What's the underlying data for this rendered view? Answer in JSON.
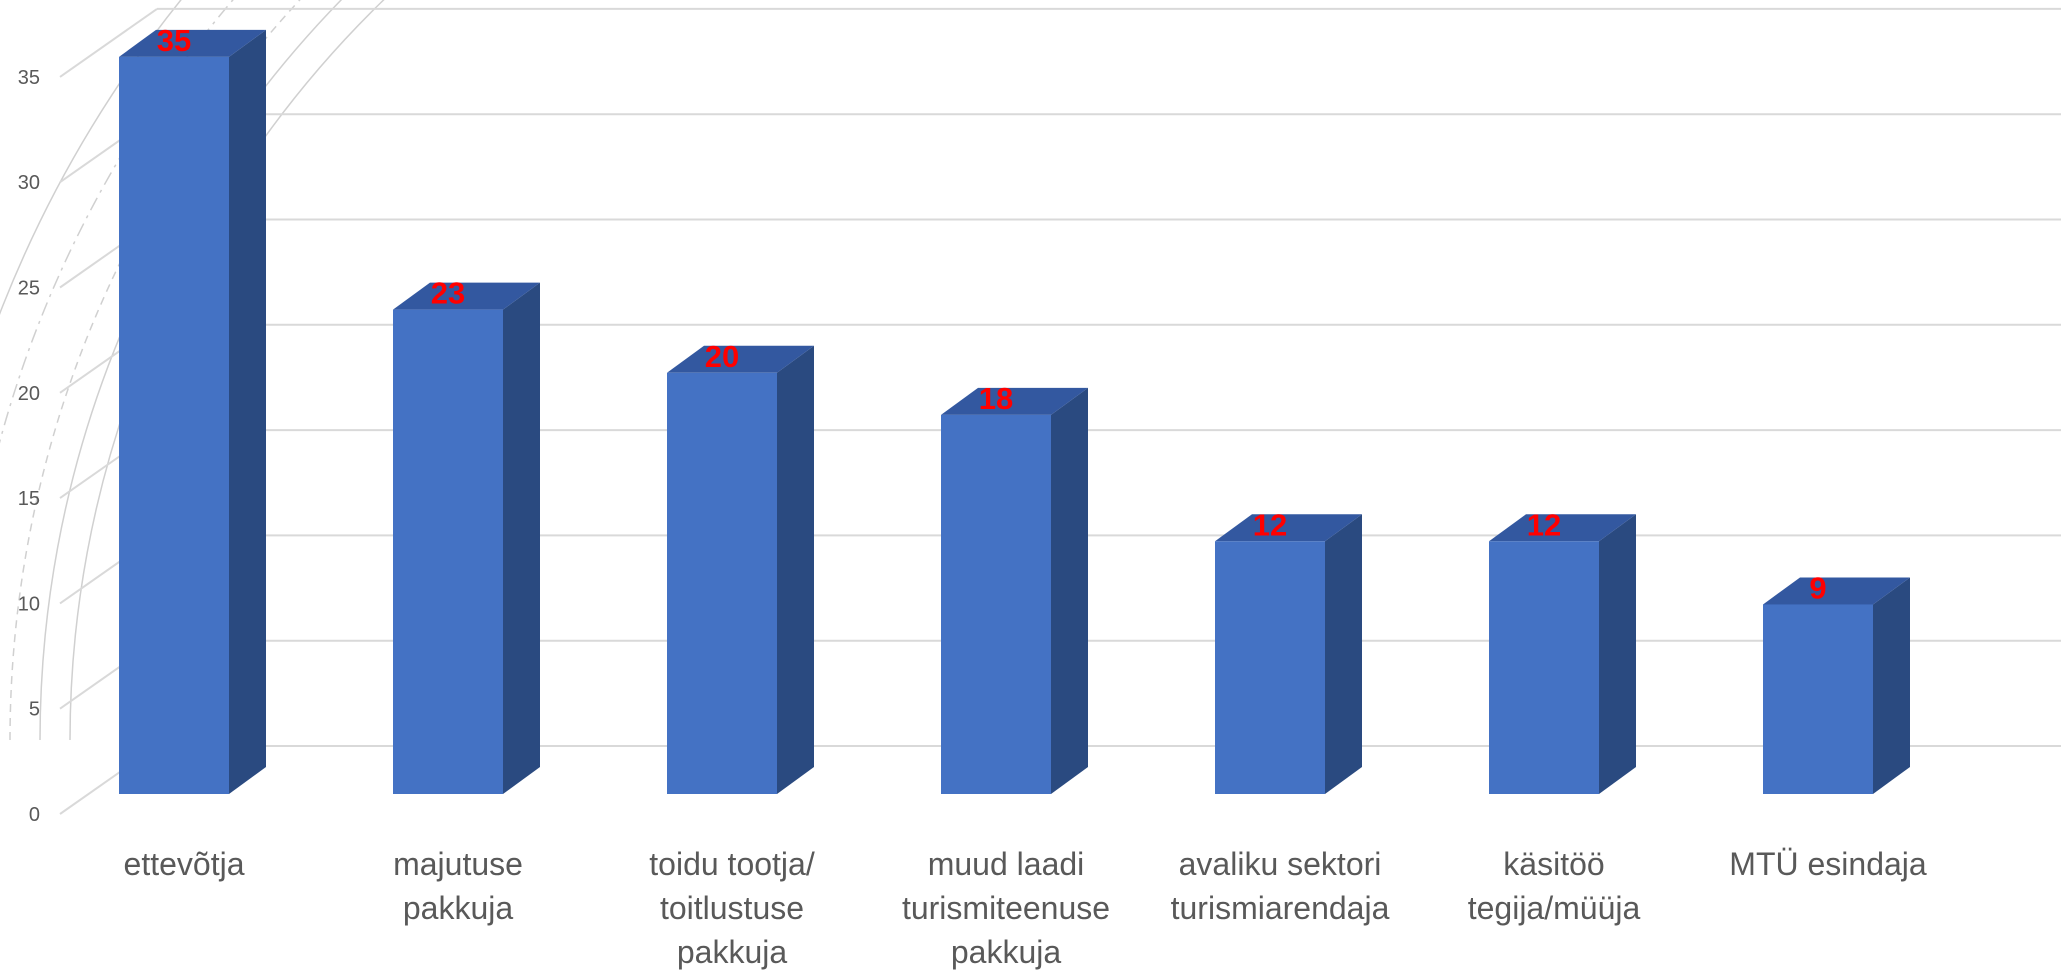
{
  "chart_data": {
    "type": "bar",
    "style": "3d-clustered-column",
    "categories": [
      [
        "ettevõtja"
      ],
      [
        "majutuse",
        "pakkuja"
      ],
      [
        "toidu tootja/",
        "toitlustuse",
        "pakkuja"
      ],
      [
        "muud laadi",
        "turismiteenuse",
        "pakkuja"
      ],
      [
        "avaliku sektori",
        "turismiarendaja"
      ],
      [
        "käsitöö",
        "tegija/müüja"
      ],
      [
        "MTÜ esindaja"
      ]
    ],
    "values": [
      35,
      23,
      20,
      18,
      12,
      12,
      9
    ],
    "data_labels": [
      "35",
      "23",
      "20",
      "18",
      "12",
      "12",
      "9"
    ],
    "ylim": [
      0,
      35
    ],
    "yticks": [
      "0",
      "5",
      "10",
      "15",
      "20",
      "25",
      "30",
      "35"
    ],
    "grid": true,
    "legend": "none",
    "colors": {
      "bar_front": "#4472c4",
      "bar_side": "#2a4a80",
      "bar_top": "#3358a0",
      "gridline": "#d9d9d9",
      "data_label": "#ff0000",
      "axis_text": "#595959"
    }
  }
}
